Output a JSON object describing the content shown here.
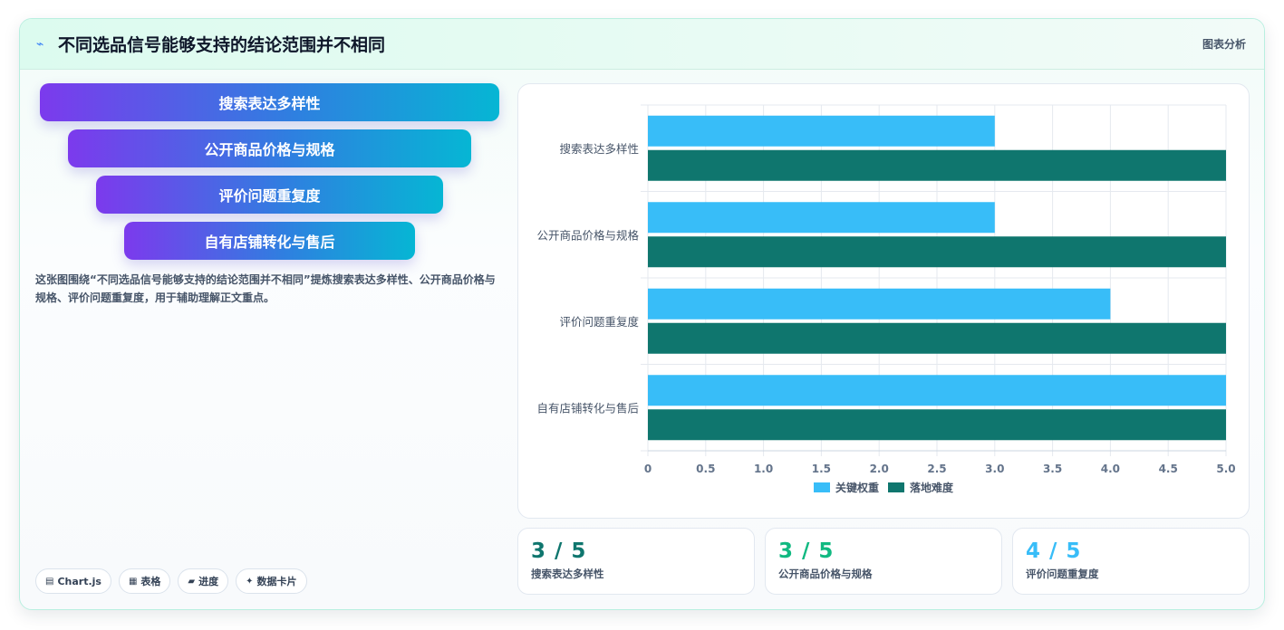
{
  "header": {
    "title": "不同选品信号能够支持的结论范围并不相同",
    "tag": "图表分析",
    "icon": "sparkle-icon"
  },
  "funnel": {
    "items": [
      "搜索表达多样性",
      "公开商品价格与规格",
      "评价问题重复度",
      "自有店铺转化与售后"
    ]
  },
  "description": "这张图围绕“不同选品信号能够支持的结论范围并不相同”提炼搜索表达多样性、公开商品价格与规格、评价问题重复度，用于辅助理解正文重点。",
  "tags": [
    {
      "icon": "chart-icon",
      "glyph": "▤",
      "label": "Chart.js"
    },
    {
      "icon": "table-icon",
      "glyph": "▦",
      "label": "表格"
    },
    {
      "icon": "progress-icon",
      "glyph": "▰",
      "label": "进度"
    },
    {
      "icon": "card-icon",
      "glyph": "✦",
      "label": "数据卡片"
    }
  ],
  "chart_data": {
    "type": "bar",
    "orientation": "horizontal",
    "categories": [
      "搜索表达多样性",
      "公开商品价格与规格",
      "评价问题重复度",
      "自有店铺转化与售后"
    ],
    "series": [
      {
        "name": "关键权重",
        "values": [
          3,
          3,
          4,
          5
        ],
        "color": "#38bdf8"
      },
      {
        "name": "落地难度",
        "values": [
          5,
          5,
          5,
          5
        ],
        "color": "#0f766e"
      }
    ],
    "xlim": [
      0,
      5
    ],
    "xticks": [
      "0",
      "0.5",
      "1.0",
      "1.5",
      "2.0",
      "2.5",
      "3.0",
      "3.5",
      "4.0",
      "4.5",
      "5.0"
    ],
    "grid": true,
    "legend": "bottom"
  },
  "stats": [
    {
      "value": "3 / 5",
      "label": "搜索表达多样性",
      "color": "#0f766e"
    },
    {
      "value": "3 / 5",
      "label": "公开商品价格与规格",
      "color": "#10b981"
    },
    {
      "value": "4 / 5",
      "label": "评价问题重复度",
      "color": "#38bdf8"
    }
  ]
}
